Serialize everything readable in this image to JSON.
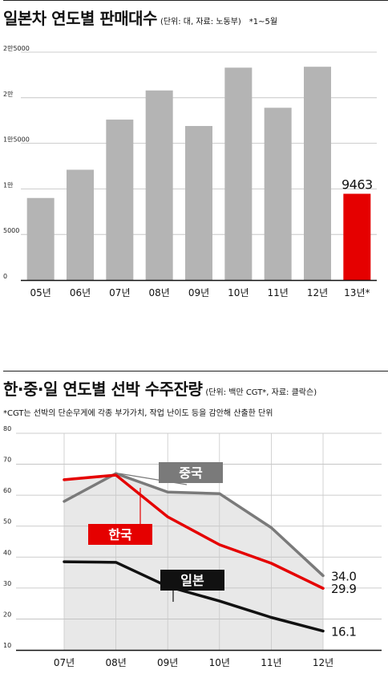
{
  "chart1": {
    "title": "일본차 연도별 판매대수",
    "unit_note": "(단위: 대, 자료: 노동부)",
    "period_note": "*1~5월",
    "chart_data": {
      "type": "bar",
      "categories": [
        "05년",
        "06년",
        "07년",
        "08년",
        "09년",
        "10년",
        "11년",
        "12년",
        "13년*"
      ],
      "values": [
        9000,
        12100,
        17600,
        20800,
        16900,
        23300,
        18900,
        23400,
        9463
      ],
      "y_ticks": [
        0,
        5000,
        10000,
        15000,
        20000,
        25000
      ],
      "y_tick_labels": [
        "0",
        "5000",
        "1만",
        "1만5000",
        "2만",
        "2만5000"
      ],
      "ylim": [
        0,
        25000
      ],
      "bar_color": "#b4b4b4",
      "highlight_color": "#e50000",
      "highlight_index": 8,
      "data_labels": [
        {
          "index": 8,
          "text": "9463"
        }
      ],
      "grid": true
    }
  },
  "chart2": {
    "title": "한·중·일 연도별 선박 수주잔량",
    "unit_note": "(단위: 백만 CGT*, 자료: 클락슨)",
    "footnote": "*CGT는 선박의 단순무게에 각종 부가가치, 작업 난이도 등을 감안해 산출한 단위",
    "chart_data": {
      "type": "line",
      "x": [
        "07년",
        "08년",
        "09년",
        "10년",
        "11년",
        "12년"
      ],
      "ylim": [
        10,
        80
      ],
      "y_ticks": [
        10,
        20,
        30,
        40,
        50,
        60,
        70,
        80
      ],
      "grid": true,
      "series": [
        {
          "name": "중국",
          "values": [
            58,
            67,
            61,
            60.5,
            49.5,
            34.0
          ],
          "color": "#7a7a7a",
          "end_label": "34.0"
        },
        {
          "name": "한국",
          "values": [
            65,
            66.5,
            53,
            44,
            38,
            29.9
          ],
          "color": "#e50000",
          "end_label": "29.9"
        },
        {
          "name": "일본",
          "values": [
            38.5,
            38.3,
            30.5,
            25.8,
            20.5,
            16.1
          ],
          "color": "#111111",
          "end_label": "16.1"
        }
      ],
      "fill_color": "#e8e8e8"
    }
  }
}
